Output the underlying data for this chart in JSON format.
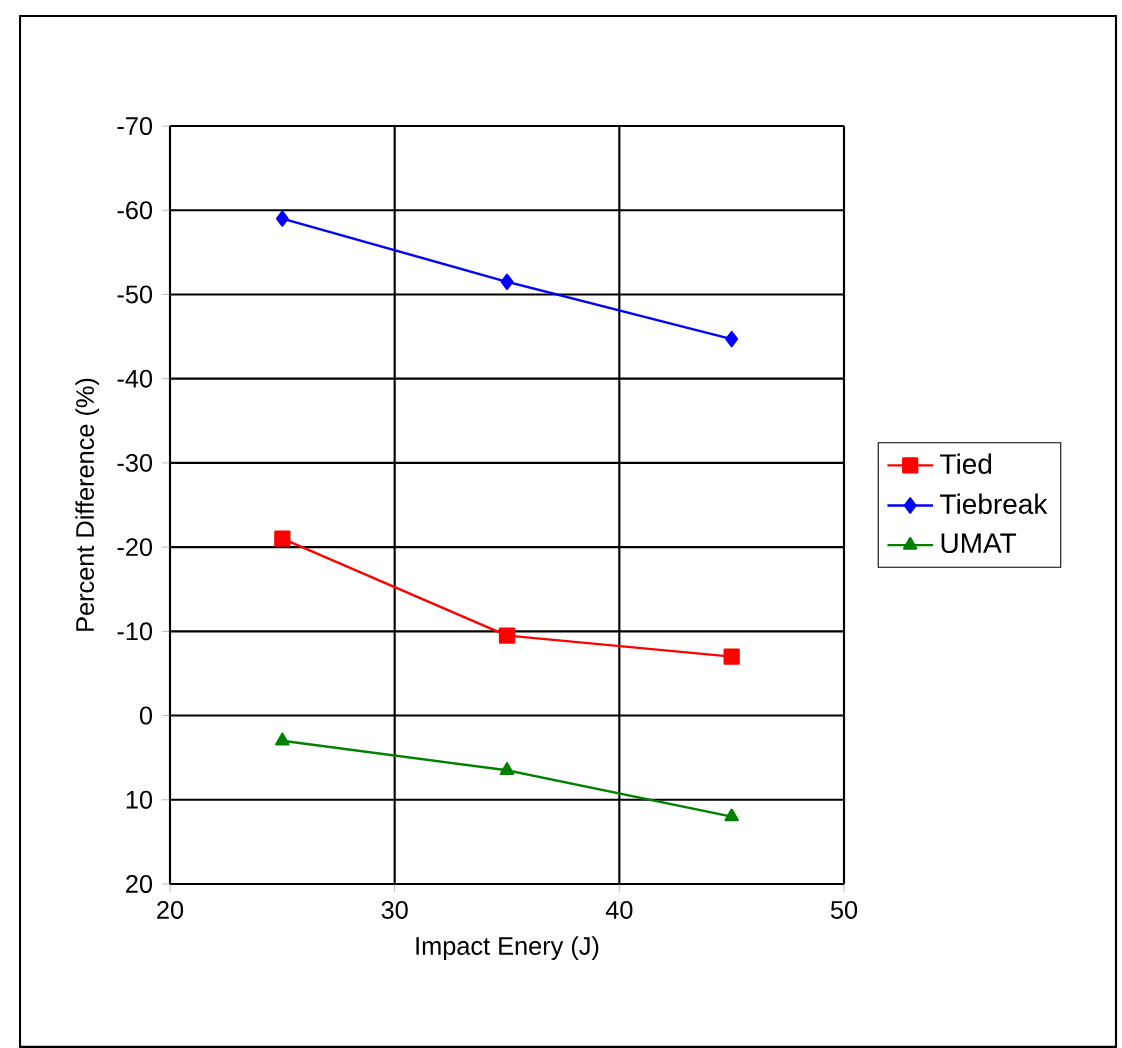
{
  "chart_data": {
    "type": "line",
    "xlabel": "Impact Enery (J)",
    "ylabel": "Percent Difference (%)",
    "x": [
      25,
      35,
      45
    ],
    "series": [
      {
        "name": "Tied",
        "color": "#ff0000",
        "marker": "square",
        "values": [
          -21,
          -9.5,
          -7
        ]
      },
      {
        "name": "Tiebreak",
        "color": "#0000ff",
        "marker": "diamond",
        "values": [
          -59,
          -51.5,
          -44.7
        ]
      },
      {
        "name": "UMAT",
        "color": "#008000",
        "marker": "triangle",
        "values": [
          3,
          6.5,
          12
        ]
      }
    ],
    "xlim": [
      20,
      50
    ],
    "xticks": [
      20,
      30,
      40,
      50
    ],
    "ylim": [
      20,
      -70
    ],
    "yticks": [
      20,
      10,
      0,
      -10,
      -20,
      -30,
      -40,
      -50,
      -60,
      -70
    ],
    "grid": true,
    "legend": "right",
    "line_style": "solid"
  }
}
